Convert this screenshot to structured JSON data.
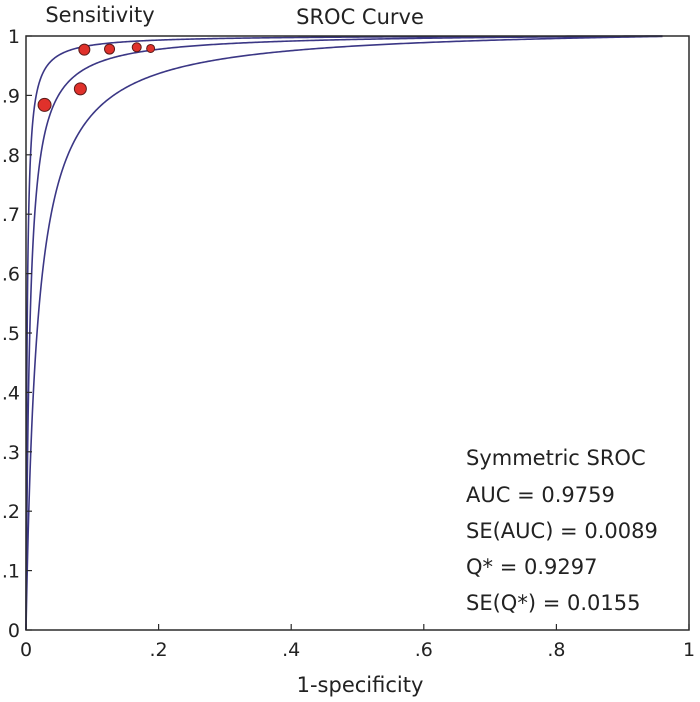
{
  "chart_data": {
    "type": "scatter",
    "title": "SROC Curve",
    "ylabel": "Sensitivity",
    "xlabel": "1-specificity",
    "xlim": [
      0,
      1
    ],
    "ylim": [
      0,
      1
    ],
    "x_ticks": [
      "0",
      ".2",
      ".4",
      ".6",
      ".8",
      "1"
    ],
    "y_ticks": [
      "0",
      ".1",
      ".2",
      ".3",
      ".4",
      ".5",
      ".6",
      ".7",
      ".8",
      ".9",
      "1"
    ],
    "grid": false,
    "curve_color": "#3b3785",
    "point_color": "#e0312b",
    "curves": [
      {
        "name": "sroc",
        "Q": 0.9297
      },
      {
        "name": "ci-upper",
        "Q": 0.96
      },
      {
        "name": "ci-lower",
        "Q": 0.885
      }
    ],
    "points": [
      {
        "x": 0.028,
        "y": 0.884,
        "size": 6.5
      },
      {
        "x": 0.082,
        "y": 0.911,
        "size": 6
      },
      {
        "x": 0.088,
        "y": 0.977,
        "size": 5.5
      },
      {
        "x": 0.126,
        "y": 0.978,
        "size": 5
      },
      {
        "x": 0.167,
        "y": 0.981,
        "size": 4.5
      },
      {
        "x": 0.188,
        "y": 0.979,
        "size": 4
      }
    ],
    "annotation": {
      "heading": "Symmetric SROC",
      "lines": [
        "AUC = 0.9759",
        "SE(AUC) = 0.0089",
        "Q* = 0.9297",
        "SE(Q*) = 0.0155"
      ]
    }
  }
}
